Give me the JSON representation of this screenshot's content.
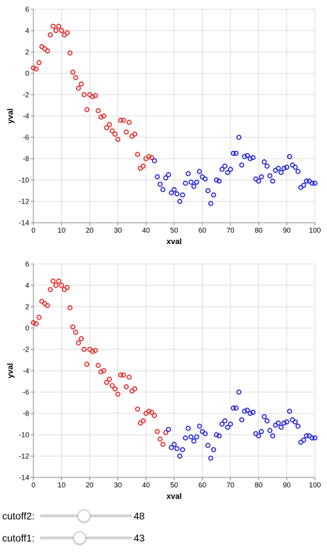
{
  "colors": {
    "red": "#e4302f",
    "blue": "#2b2bd6",
    "grid": "#dddddd",
    "axis": "#888888"
  },
  "chart_data": [
    {
      "type": "scatter",
      "xlabel": "xval",
      "ylabel": "yval",
      "xlim": [
        0,
        100
      ],
      "ylim": [
        -14,
        6
      ],
      "x_ticks": [
        "0",
        "10",
        "20",
        "30",
        "40",
        "50",
        "60",
        "70",
        "80",
        "90",
        "100"
      ],
      "y_ticks": [
        "6",
        "4",
        "2",
        "0",
        "-2",
        "-4",
        "-6",
        "-8",
        "-10",
        "-12",
        "-14"
      ],
      "cutoff": 43,
      "point_style": "hollow circle; red for xval < cutoff, blue otherwise",
      "x": [
        0,
        1,
        2,
        3,
        4,
        5,
        6,
        7,
        8,
        9,
        10,
        11,
        12,
        13,
        14,
        15,
        16,
        17,
        18,
        19,
        20,
        21,
        22,
        23,
        24,
        25,
        26,
        27,
        28,
        29,
        30,
        31,
        32,
        33,
        34,
        35,
        36,
        37,
        38,
        39,
        40,
        41,
        42,
        43,
        44,
        45,
        46,
        47,
        48,
        49,
        50,
        51,
        52,
        53,
        54,
        55,
        56,
        57,
        58,
        59,
        60,
        61,
        62,
        63,
        64,
        65,
        66,
        67,
        68,
        69,
        70,
        71,
        72,
        73,
        74,
        75,
        76,
        77,
        78,
        79,
        80,
        81,
        82,
        83,
        84,
        85,
        86,
        87,
        88,
        89,
        90,
        91,
        92,
        93,
        94,
        95,
        96,
        97,
        98,
        99,
        100
      ],
      "y": [
        0.5,
        0.4,
        1.0,
        2.5,
        2.3,
        2.1,
        3.6,
        4.4,
        4.0,
        4.4,
        4.0,
        3.6,
        3.8,
        1.9,
        0.1,
        -0.4,
        -1.4,
        -1.0,
        -2.0,
        -3.4,
        -2.0,
        -2.2,
        -2.1,
        -3.5,
        -4.1,
        -4.0,
        -5.1,
        -4.8,
        -5.4,
        -5.7,
        -6.2,
        -4.4,
        -4.4,
        -5.5,
        -4.6,
        -5.9,
        -5.7,
        -7.6,
        -8.9,
        -8.7,
        -8.0,
        -7.8,
        -7.9,
        -8.2,
        -9.7,
        -10.4,
        -10.9,
        -9.8,
        -9.5,
        -11.2,
        -10.9,
        -11.3,
        -12.0,
        -11.4,
        -10.3,
        -9.4,
        -10.2,
        -10.6,
        -10.2,
        -9.2,
        -9.7,
        -9.9,
        -11.0,
        -12.2,
        -11.4,
        -10.0,
        -10.1,
        -9.0,
        -8.7,
        -9.3,
        -9.0,
        -7.5,
        -7.5,
        -6.0,
        -8.6,
        -7.8,
        -7.7,
        -8.0,
        -7.9,
        -9.9,
        -10.1,
        -9.7,
        -8.3,
        -8.7,
        -9.6,
        -10.1,
        -9.1,
        -8.9,
        -9.3,
        -8.9,
        -8.8,
        -7.8,
        -8.6,
        -8.8,
        -9.2,
        -10.7,
        -10.5,
        -10.1,
        -10.1,
        -10.3,
        -10.3
      ]
    },
    {
      "type": "scatter",
      "xlabel": "xval",
      "ylabel": "yval",
      "xlim": [
        0,
        100
      ],
      "ylim": [
        -14,
        6
      ],
      "x_ticks": [
        "0",
        "10",
        "20",
        "30",
        "40",
        "50",
        "60",
        "70",
        "80",
        "90",
        "100"
      ],
      "y_ticks": [
        "6",
        "4",
        "2",
        "0",
        "-2",
        "-4",
        "-6",
        "-8",
        "-10",
        "-12",
        "-14"
      ],
      "cutoff": 48,
      "point_style": "hollow circle; red for xval < cutoff, blue otherwise",
      "x": [
        0,
        1,
        2,
        3,
        4,
        5,
        6,
        7,
        8,
        9,
        10,
        11,
        12,
        13,
        14,
        15,
        16,
        17,
        18,
        19,
        20,
        21,
        22,
        23,
        24,
        25,
        26,
        27,
        28,
        29,
        30,
        31,
        32,
        33,
        34,
        35,
        36,
        37,
        38,
        39,
        40,
        41,
        42,
        43,
        44,
        45,
        46,
        47,
        48,
        49,
        50,
        51,
        52,
        53,
        54,
        55,
        56,
        57,
        58,
        59,
        60,
        61,
        62,
        63,
        64,
        65,
        66,
        67,
        68,
        69,
        70,
        71,
        72,
        73,
        74,
        75,
        76,
        77,
        78,
        79,
        80,
        81,
        82,
        83,
        84,
        85,
        86,
        87,
        88,
        89,
        90,
        91,
        92,
        93,
        94,
        95,
        96,
        97,
        98,
        99,
        100
      ],
      "y": [
        0.5,
        0.4,
        1.0,
        2.5,
        2.3,
        2.1,
        3.6,
        4.4,
        4.0,
        4.4,
        4.0,
        3.6,
        3.8,
        1.9,
        0.1,
        -0.4,
        -1.4,
        -1.0,
        -2.0,
        -3.4,
        -2.0,
        -2.2,
        -2.1,
        -3.5,
        -4.1,
        -4.0,
        -5.1,
        -4.8,
        -5.4,
        -5.7,
        -6.2,
        -4.4,
        -4.4,
        -5.5,
        -4.6,
        -5.9,
        -5.7,
        -7.6,
        -8.9,
        -8.7,
        -8.0,
        -7.8,
        -7.9,
        -8.2,
        -9.7,
        -10.4,
        -10.9,
        -9.8,
        -9.5,
        -11.2,
        -10.9,
        -11.3,
        -12.0,
        -11.4,
        -10.3,
        -9.4,
        -10.2,
        -10.6,
        -10.2,
        -9.2,
        -9.7,
        -9.9,
        -11.0,
        -12.2,
        -11.4,
        -10.0,
        -10.1,
        -9.0,
        -8.7,
        -9.3,
        -9.0,
        -7.5,
        -7.5,
        -6.0,
        -8.6,
        -7.8,
        -7.7,
        -8.0,
        -7.9,
        -9.9,
        -10.1,
        -9.7,
        -8.3,
        -8.7,
        -9.6,
        -10.1,
        -9.1,
        -8.9,
        -9.3,
        -8.9,
        -8.8,
        -7.8,
        -8.6,
        -8.8,
        -9.2,
        -10.7,
        -10.5,
        -10.1,
        -10.1,
        -10.3,
        -10.3
      ]
    }
  ],
  "controls": {
    "slider_min": 0,
    "slider_max": 100,
    "cutoff2": {
      "label": "cutoff2:",
      "value": 48
    },
    "cutoff1": {
      "label": "cutoff1:",
      "value": 43
    }
  }
}
